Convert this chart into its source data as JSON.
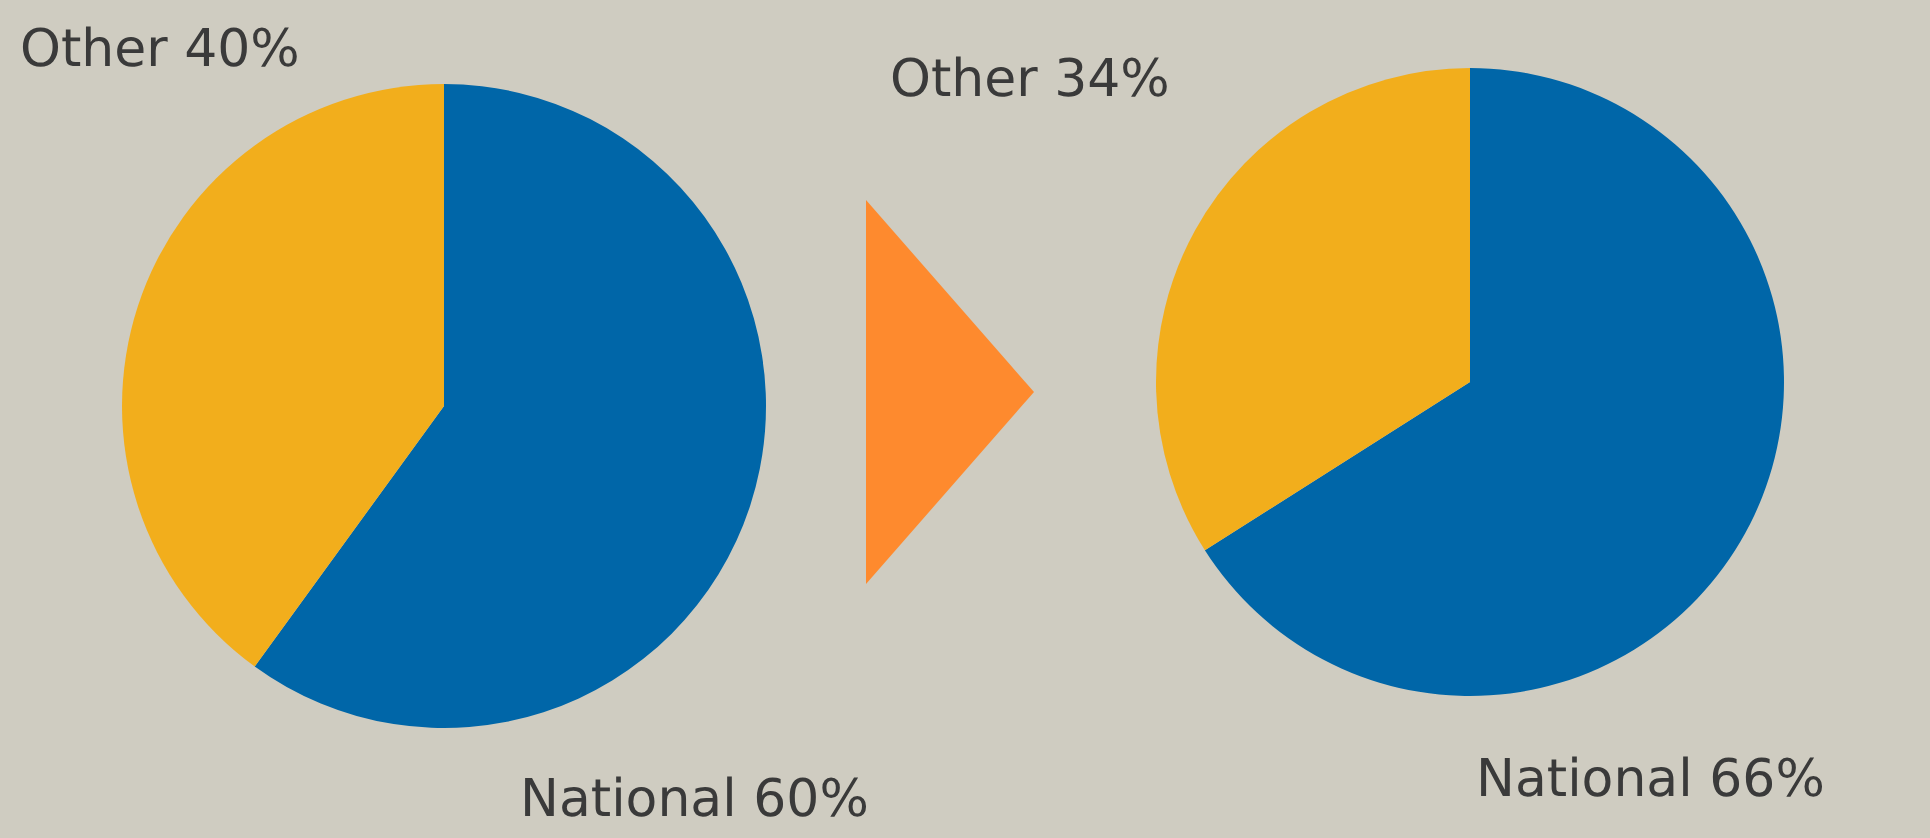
{
  "chart_data": [
    {
      "type": "pie",
      "categories": [
        "National",
        "Other"
      ],
      "values": [
        60,
        40
      ],
      "colors": [
        "#0066a8",
        "#f2ae1c"
      ],
      "value_labels": [
        "60%",
        "40%"
      ]
    },
    {
      "type": "pie",
      "categories": [
        "National",
        "Other"
      ],
      "values": [
        66,
        34
      ],
      "colors": [
        "#0066a8",
        "#f2ae1c"
      ],
      "value_labels": [
        "66%",
        "34%"
      ]
    }
  ]
}
